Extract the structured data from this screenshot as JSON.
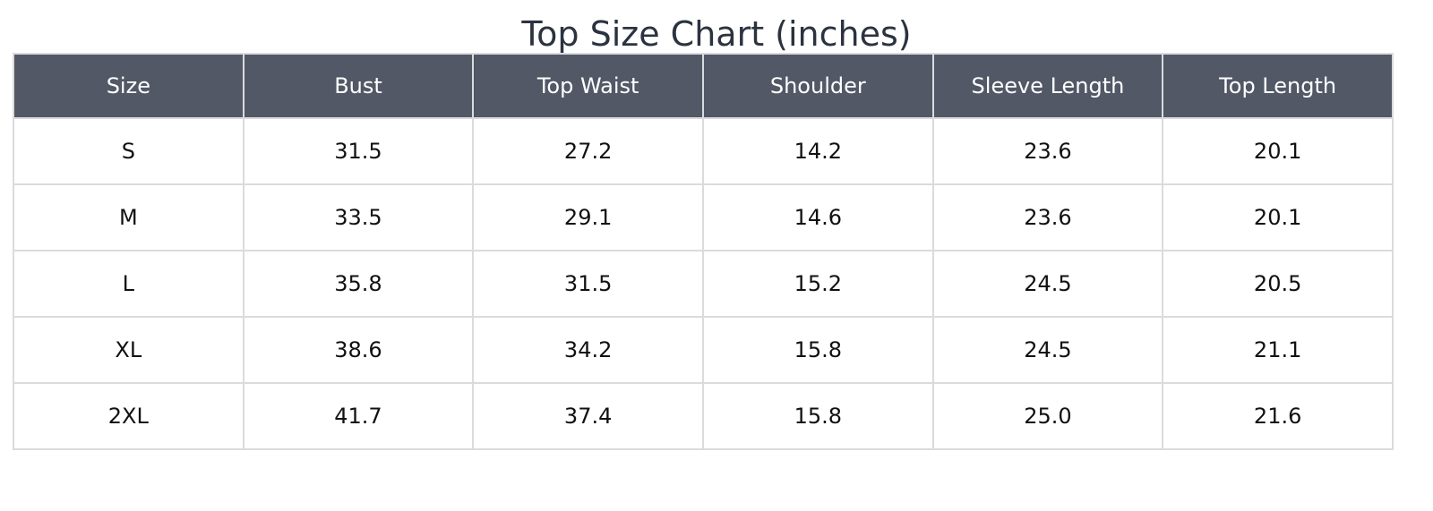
{
  "title": "Top Size Chart (inches)",
  "table": {
    "header": [
      "Size",
      "Bust",
      "Top Waist",
      "Shoulder",
      "Sleeve Length",
      "Top Length"
    ],
    "rows": [
      [
        "S",
        "31.5",
        "27.2",
        "14.2",
        "23.6",
        "20.1"
      ],
      [
        "M",
        "33.5",
        "29.1",
        "14.6",
        "23.6",
        "20.1"
      ],
      [
        "L",
        "35.8",
        "31.5",
        "15.2",
        "24.5",
        "20.5"
      ],
      [
        "XL",
        "38.6",
        "34.2",
        "15.8",
        "24.5",
        "21.1"
      ],
      [
        "2XL",
        "41.7",
        "37.4",
        "15.8",
        "25.0",
        "21.6"
      ]
    ]
  }
}
